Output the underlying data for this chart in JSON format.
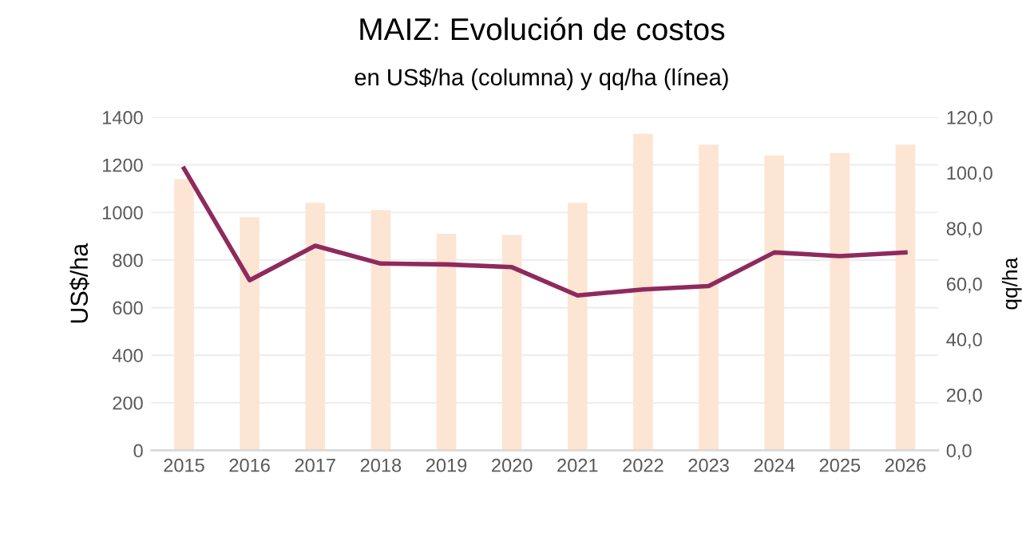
{
  "chart_data": {
    "type": "bar",
    "title": "MAIZ: Evolución de costos",
    "subtitle": "en US$/ha (columna) y qq/ha (línea)",
    "ylabel": "US$/ha",
    "y2label": "qq/ha",
    "categories": [
      "2015",
      "2016",
      "2017",
      "2018",
      "2019",
      "2020",
      "2021",
      "2022",
      "2023",
      "2024",
      "2025",
      "2026"
    ],
    "series": [
      {
        "color": "#fde5d3",
        "values": [
          1140,
          980,
          1040,
          1010,
          910,
          905,
          1040,
          1330,
          1285,
          1240,
          1250,
          1285
        ]
      },
      {
        "type": "line",
        "axis": "y2",
        "color": "#8e2a5e",
        "values": [
          101.5,
          61.3,
          73.7,
          67.3,
          67.0,
          66.0,
          55.8,
          58.0,
          59.2,
          71.3,
          70.0,
          71.3
        ]
      }
    ],
    "ylim": [
      0,
      1400
    ],
    "yticks": [
      0,
      200,
      400,
      600,
      800,
      1000,
      1200,
      1400
    ],
    "y2lim": [
      0,
      120
    ],
    "y2ticks": [
      {
        "value": 0,
        "label": "0,0"
      },
      {
        "value": 20,
        "label": "20,0"
      },
      {
        "value": 40,
        "label": "40,0"
      },
      {
        "value": 60,
        "label": "60,0"
      },
      {
        "value": 80,
        "label": "80,0"
      },
      {
        "value": 100,
        "label": "100,0"
      },
      {
        "value": 120,
        "label": "120,0"
      }
    ],
    "grid": "y"
  }
}
